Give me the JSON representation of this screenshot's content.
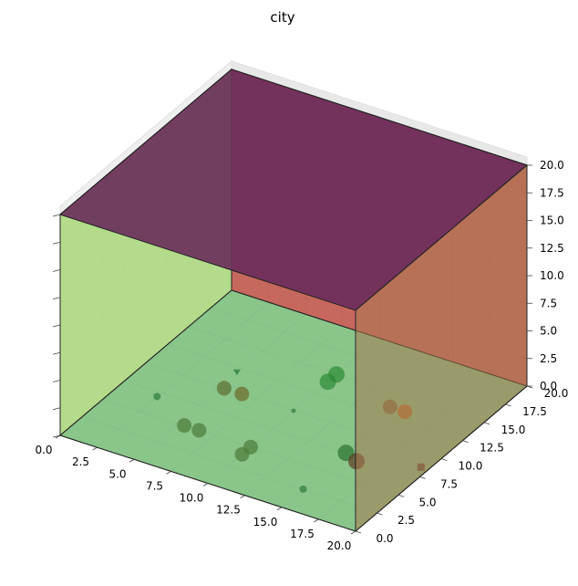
{
  "chart_data": {
    "type": "scatter3d",
    "title": "city",
    "xlabel": "",
    "ylabel": "",
    "zlabel": "",
    "xlim": [
      0,
      20
    ],
    "ylim": [
      0,
      20
    ],
    "zlim": [
      0,
      20
    ],
    "x_ticks": [
      "0.0",
      "2.5",
      "5.0",
      "7.5",
      "10.0",
      "12.5",
      "15.0",
      "17.5",
      "20.0"
    ],
    "y_ticks": [
      "0.0",
      "2.5",
      "5.0",
      "7.5",
      "10.0",
      "12.5",
      "15.0",
      "17.5",
      "20.0"
    ],
    "z_ticks": [
      "0.0",
      "2.5",
      "5.0",
      "7.5",
      "10.0",
      "12.5",
      "15.0",
      "17.5",
      "20.0"
    ],
    "grid": true,
    "box_faces": [
      {
        "name": "back-left wall",
        "color": "#8b6a5a"
      },
      {
        "name": "top face",
        "color": "#6b2f5c"
      },
      {
        "name": "right wall",
        "color": "#c2564a"
      },
      {
        "name": "floor",
        "color": "#80c080"
      },
      {
        "name": "front-left wall",
        "color": "#b4e68a"
      },
      {
        "name": "front-right wall",
        "color": "#a87850"
      }
    ],
    "points": [
      {
        "x": 2.5,
        "y": 7.0,
        "z": 0,
        "color": "#2e7a3a",
        "size": 4,
        "marker": "circle"
      },
      {
        "x": 5.0,
        "y": 12.0,
        "z": 0,
        "color": "#2e7a3a",
        "size": 4,
        "marker": "triangle"
      },
      {
        "x": 5.5,
        "y": 5.0,
        "z": 0,
        "color": "#4c7a38",
        "size": 8,
        "marker": "circle"
      },
      {
        "x": 6.5,
        "y": 5.0,
        "z": 0,
        "color": "#4c7a38",
        "size": 8,
        "marker": "circle"
      },
      {
        "x": 5.3,
        "y": 10.0,
        "z": 0,
        "color": "#5b6e2e",
        "size": 8,
        "marker": "circle"
      },
      {
        "x": 6.5,
        "y": 10.0,
        "z": 0,
        "color": "#6b6a2a",
        "size": 8,
        "marker": "circle"
      },
      {
        "x": 10.0,
        "y": 10.0,
        "z": 0,
        "color": "#2e7a3a",
        "size": 2.5,
        "marker": "circle"
      },
      {
        "x": 10.0,
        "y": 15.0,
        "z": 0,
        "color": "#2c8a34",
        "size": 9,
        "marker": "circle"
      },
      {
        "x": 10.0,
        "y": 14.0,
        "z": 0,
        "color": "#2c8a34",
        "size": 9,
        "marker": "circle"
      },
      {
        "x": 10.0,
        "y": 5.0,
        "z": 0,
        "color": "#4c7a38",
        "size": 8,
        "marker": "circle"
      },
      {
        "x": 10.0,
        "y": 4.0,
        "z": 0,
        "color": "#4c7a38",
        "size": 8,
        "marker": "circle"
      },
      {
        "x": 15.0,
        "y": 2.5,
        "z": 0,
        "color": "#2e7a3a",
        "size": 4,
        "marker": "circle"
      },
      {
        "x": 15.0,
        "y": 7.5,
        "z": 0,
        "color": "#2c7030",
        "size": 9,
        "marker": "circle"
      },
      {
        "x": 16.0,
        "y": 7.0,
        "z": 0,
        "color": "#5a3a20",
        "size": 9,
        "marker": "circle"
      },
      {
        "x": 14.5,
        "y": 13.5,
        "z": 0,
        "color": "#7a6030",
        "size": 8,
        "marker": "circle"
      },
      {
        "x": 15.5,
        "y": 13.5,
        "z": 0,
        "color": "#c06018",
        "size": 8,
        "marker": "circle"
      },
      {
        "x": 19.5,
        "y": 8.5,
        "z": 0,
        "color": "#5a3a20",
        "size": 4,
        "marker": "square"
      }
    ]
  }
}
